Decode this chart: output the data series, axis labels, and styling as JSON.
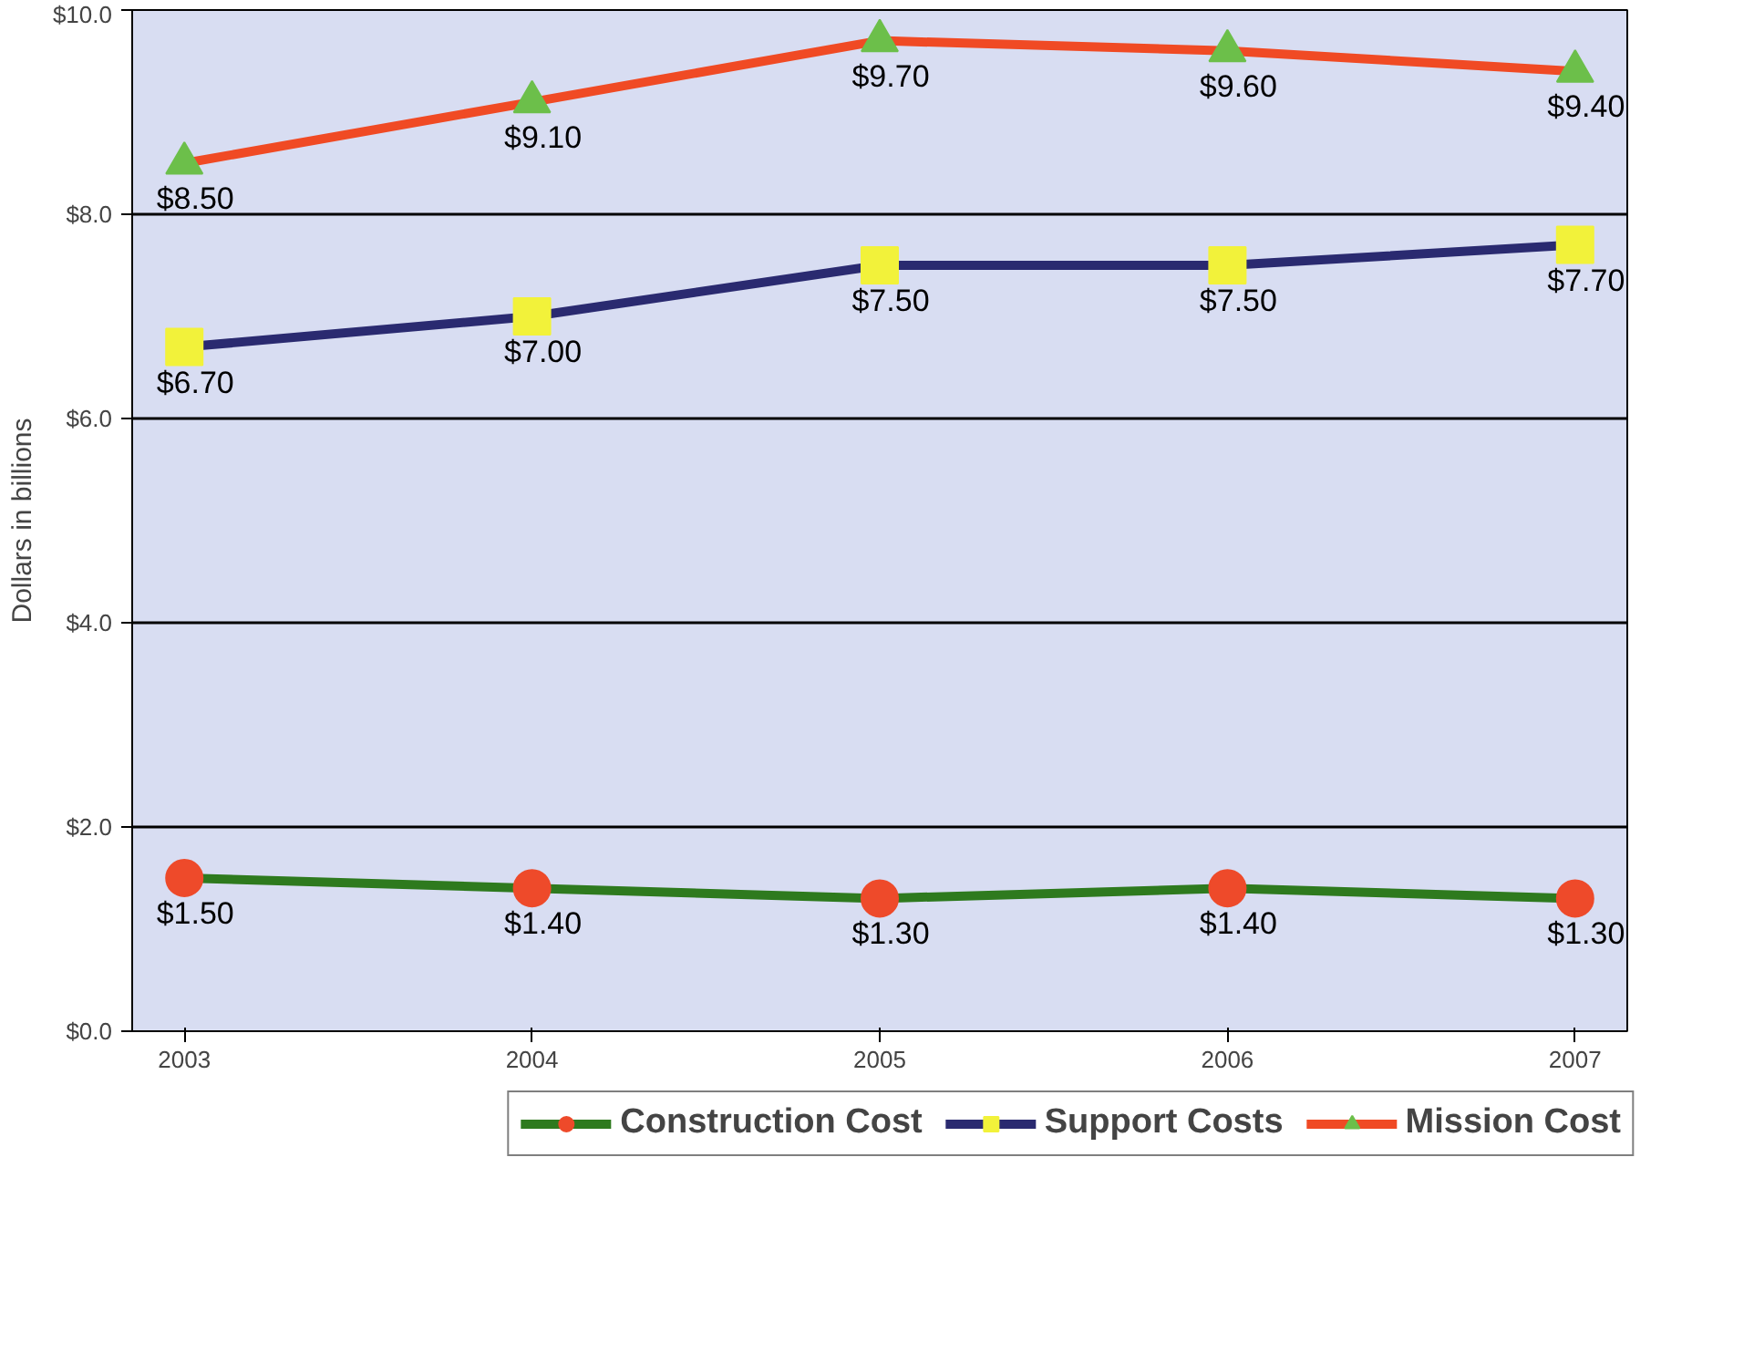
{
  "chart_data": {
    "type": "line",
    "ylabel": "Dollars in billions",
    "categories": [
      "2003",
      "2004",
      "2005",
      "2006",
      "2007"
    ],
    "ylim": [
      0,
      10
    ],
    "yticks": [
      {
        "value": 0,
        "label": "$0.0"
      },
      {
        "value": 2,
        "label": "$2.0"
      },
      {
        "value": 4,
        "label": "$4.0"
      },
      {
        "value": 6,
        "label": "$6.0"
      },
      {
        "value": 8,
        "label": "$8.0"
      },
      {
        "value": 10,
        "label": "$10.0"
      }
    ],
    "grid": "y",
    "legend": "bottom",
    "series": [
      {
        "name": "Construction Cost",
        "color": "#2e7a1e",
        "marker": "circle",
        "colors": [
          "#ee4a2a",
          "#ee4a2a",
          "#ee4a2a",
          "#ee4a2a",
          "#ee4a2a"
        ],
        "values": [
          1.5,
          1.4,
          1.3,
          1.4,
          1.3
        ],
        "value_labels": [
          "$1.50",
          "$1.40",
          "$1.30",
          "$1.40",
          "$1.30"
        ]
      },
      {
        "name": "Support Costs",
        "color": "#2a2a70",
        "marker": "square",
        "colors": [
          "#f2f23a",
          "#f2f23a",
          "#f2f23a",
          "#f2f23a",
          "#f2f23a"
        ],
        "values": [
          6.7,
          7.0,
          7.5,
          7.5,
          7.7
        ],
        "value_labels": [
          "$6.70",
          "$7.00",
          "$7.50",
          "$7.50",
          "$7.70"
        ]
      },
      {
        "name": "Mission Cost",
        "color": "#f04a24",
        "marker": "triangle",
        "colors": [
          "#6cbf4a",
          "#6cbf4a",
          "#6cbf4a",
          "#6cbf4a",
          "#6cbf4a"
        ],
        "values": [
          8.5,
          9.1,
          9.7,
          9.6,
          9.4
        ],
        "value_labels": [
          "$8.50",
          "$9.10",
          "$9.70",
          "$9.60",
          "$9.40"
        ]
      }
    ]
  }
}
